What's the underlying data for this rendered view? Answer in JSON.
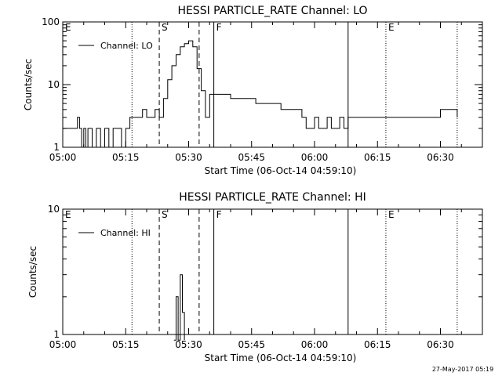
{
  "chart_data": [
    {
      "type": "line",
      "title": "HESSI PARTICLE_RATE Channel: LO",
      "xlabel": "Start Time (06-Oct-14 04:59:10)",
      "ylabel": "Counts/sec",
      "y_scale": "log",
      "ylim": [
        1,
        100
      ],
      "xlim": [
        "05:00",
        "06:40"
      ],
      "x_ticks": [
        "05:00",
        "05:15",
        "05:30",
        "05:45",
        "06:00",
        "06:15",
        "06:30"
      ],
      "y_ticks": [
        "1",
        "10",
        "100"
      ],
      "legend_position": "top-left",
      "series": [
        {
          "name": "Channel: LO",
          "x": [
            "05:00",
            "05:02",
            "05:03",
            "05:03.5",
            "05:04",
            "05:04.5",
            "05:05",
            "05:05.5",
            "05:06",
            "05:07",
            "05:08",
            "05:09",
            "05:10",
            "05:11",
            "05:12",
            "05:13",
            "05:14",
            "05:15",
            "05:16",
            "05:17",
            "05:18",
            "05:19",
            "05:20",
            "05:21",
            "05:22",
            "05:23",
            "05:24",
            "05:25",
            "05:26",
            "05:27",
            "05:28",
            "05:29",
            "05:30",
            "05:31",
            "05:32",
            "05:33",
            "05:34",
            "05:35",
            "05:36",
            "05:38",
            "05:40",
            "05:42",
            "05:44",
            "05:46",
            "05:48",
            "05:50",
            "05:52",
            "05:54",
            "05:56",
            "05:57",
            "05:58",
            "05:59",
            "06:00",
            "06:01",
            "06:02",
            "06:03",
            "06:04",
            "06:05",
            "06:06",
            "06:07",
            "06:08",
            "06:09",
            "06:10",
            "06:12",
            "06:14",
            "06:16",
            "06:18",
            "06:20",
            "06:22",
            "06:24",
            "06:26",
            "06:28",
            "06:30",
            "06:32",
            "06:34"
          ],
          "values": [
            2,
            2,
            2,
            3,
            2,
            1,
            2,
            1,
            2,
            1,
            2,
            1,
            2,
            1,
            2,
            2,
            1,
            2,
            3,
            3,
            3,
            4,
            3,
            3,
            4,
            3,
            6,
            12,
            20,
            30,
            40,
            45,
            50,
            40,
            18,
            8,
            3,
            7,
            7,
            7,
            6,
            6,
            6,
            5,
            5,
            5,
            4,
            4,
            4,
            3,
            2,
            2,
            3,
            2,
            2,
            3,
            2,
            2,
            3,
            2,
            3,
            3,
            3,
            3,
            3,
            3,
            3,
            3,
            3,
            3,
            3,
            3,
            4,
            4,
            3
          ]
        }
      ],
      "annotations": [
        {
          "label": "E",
          "time": "05:00",
          "style": "dotted"
        },
        {
          "label": "",
          "time": "05:16.5",
          "style": "dotted"
        },
        {
          "label": "S",
          "time": "05:23",
          "style": "dashed"
        },
        {
          "label": "",
          "time": "05:32.5",
          "style": "dashed"
        },
        {
          "label": "F",
          "time": "05:36",
          "style": "solid"
        },
        {
          "label": "",
          "time": "06:08",
          "style": "solid"
        },
        {
          "label": "E",
          "time": "06:17",
          "style": "dotted"
        },
        {
          "label": "",
          "time": "06:34",
          "style": "dotted"
        }
      ]
    },
    {
      "type": "line",
      "title": "HESSI PARTICLE_RATE Channel: HI",
      "xlabel": "Start Time (06-Oct-14 04:59:10)",
      "ylabel": "Counts/sec",
      "y_scale": "log",
      "ylim": [
        1,
        10
      ],
      "xlim": [
        "05:00",
        "06:40"
      ],
      "x_ticks": [
        "05:00",
        "05:15",
        "05:30",
        "05:45",
        "06:00",
        "06:15",
        "06:30"
      ],
      "y_ticks": [
        "1",
        "10"
      ],
      "legend_position": "top-left",
      "series": [
        {
          "name": "Channel: HI",
          "x": [
            "05:26.5",
            "05:27",
            "05:27.5",
            "05:28",
            "05:28.5",
            "05:29"
          ],
          "values": [
            0.9,
            2.0,
            0.9,
            3.0,
            1.5,
            0.9
          ]
        }
      ],
      "annotations": [
        {
          "label": "E",
          "time": "05:00",
          "style": "dotted"
        },
        {
          "label": "",
          "time": "05:16.5",
          "style": "dotted"
        },
        {
          "label": "S",
          "time": "05:23",
          "style": "dashed"
        },
        {
          "label": "",
          "time": "05:32.5",
          "style": "dashed"
        },
        {
          "label": "F",
          "time": "05:36",
          "style": "solid"
        },
        {
          "label": "",
          "time": "06:08",
          "style": "solid"
        },
        {
          "label": "E",
          "time": "06:17",
          "style": "dotted"
        },
        {
          "label": "",
          "time": "06:34",
          "style": "dotted"
        }
      ]
    }
  ],
  "footer": {
    "stamp": "27-May-2017 05:19"
  }
}
